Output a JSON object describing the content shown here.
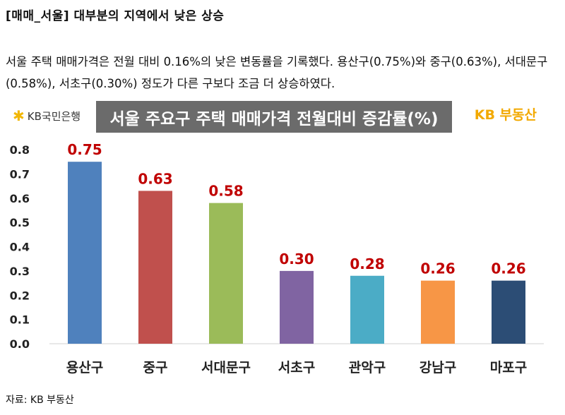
{
  "heading": "[매매_서울] 대부분의 지역에서 낮은 상승",
  "paragraph": "서울 주택 매매가격은 전월 대비 0.16%의 낮은 변동률을 기록했다. 용산구(0.75%)와 중구(0.63%), 서대문구(0.58%), 서초구(0.30%) 정도가 다른 구보다 조금 더 상승하였다.",
  "logo_left": "KB국민은행",
  "logo_right": "KB 부동산",
  "source": "자료: KB 부동산",
  "chart_data": {
    "type": "bar",
    "title": "서울 주요구 주택 매매가격 전월대비 증감률(%)",
    "xlabel": "",
    "ylabel": "",
    "categories": [
      "용산구",
      "중구",
      "서대문구",
      "서초구",
      "관악구",
      "강남구",
      "마포구"
    ],
    "values": [
      0.75,
      0.63,
      0.58,
      0.3,
      0.28,
      0.26,
      0.26
    ],
    "data_labels": [
      "0.75",
      "0.63",
      "0.58",
      "0.30",
      "0.28",
      "0.26",
      "0.26"
    ],
    "colors": [
      "#4f81bd",
      "#c0504d",
      "#9bbb59",
      "#8064a2",
      "#4bacc6",
      "#f79646",
      "#2c4d75"
    ],
    "label_color": "#c00000",
    "ylim": [
      0,
      0.8
    ],
    "yticks": [
      "0.0",
      "0.1",
      "0.2",
      "0.3",
      "0.4",
      "0.5",
      "0.6",
      "0.7",
      "0.8"
    ],
    "grid": false,
    "legend": "none"
  }
}
